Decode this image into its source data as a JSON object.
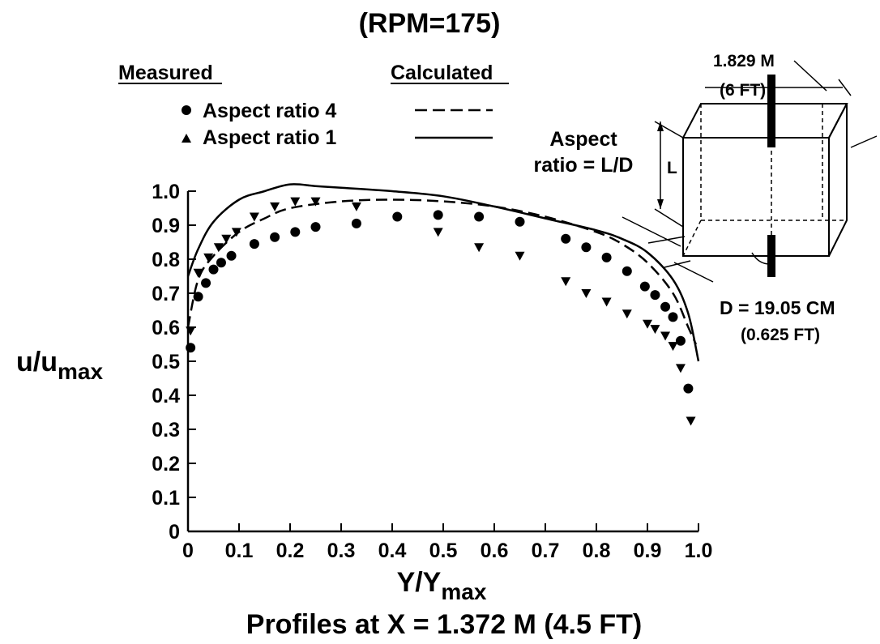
{
  "chart_data": {
    "type": "scatter",
    "title": "(RPM=175)",
    "subtitle": "Profiles at X = 1.372 M (4.5 FT)",
    "xlabel": {
      "main": "Y/Y",
      "sub": "max"
    },
    "ylabel": {
      "main": "u/u",
      "sub": "max"
    },
    "xlim": [
      0,
      1.0
    ],
    "ylim": [
      0,
      1.0
    ],
    "x_ticks": [
      "0",
      "0.1",
      "0.2",
      "0.3",
      "0.4",
      "0.5",
      "0.6",
      "0.7",
      "0.8",
      "0.9",
      "1.0"
    ],
    "y_ticks": [
      "0",
      "0.1",
      "0.2",
      "0.3",
      "0.4",
      "0.5",
      "0.6",
      "0.7",
      "0.8",
      "0.9",
      "1.0"
    ],
    "grid": false,
    "legend": {
      "position": "top-left",
      "measured_header": "Measured",
      "calculated_header": "Calculated",
      "entries": [
        {
          "label": "Aspect ratio 4",
          "marker": "circle",
          "line": "dashed"
        },
        {
          "label": "Aspect ratio 1",
          "marker": "triangle-down",
          "line": "solid"
        }
      ]
    },
    "annotations": {
      "aspect_line1": "Aspect",
      "aspect_line2": "ratio = L/D",
      "length_m": "1.829 M",
      "length_ft": "(6 FT)",
      "height_symbol": "L",
      "depth_m": "D  =  19.05 CM",
      "depth_ft": "(0.625 FT)"
    },
    "series": [
      {
        "name": "Aspect ratio 4",
        "kind": "measured",
        "marker": "circle",
        "points": [
          [
            0.005,
            0.54
          ],
          [
            0.02,
            0.69
          ],
          [
            0.035,
            0.73
          ],
          [
            0.05,
            0.77
          ],
          [
            0.065,
            0.79
          ],
          [
            0.085,
            0.81
          ],
          [
            0.13,
            0.845
          ],
          [
            0.17,
            0.865
          ],
          [
            0.21,
            0.88
          ],
          [
            0.25,
            0.895
          ],
          [
            0.33,
            0.905
          ],
          [
            0.41,
            0.925
          ],
          [
            0.49,
            0.93
          ],
          [
            0.57,
            0.925
          ],
          [
            0.65,
            0.91
          ],
          [
            0.74,
            0.86
          ],
          [
            0.78,
            0.835
          ],
          [
            0.82,
            0.805
          ],
          [
            0.86,
            0.765
          ],
          [
            0.895,
            0.72
          ],
          [
            0.915,
            0.695
          ],
          [
            0.935,
            0.66
          ],
          [
            0.95,
            0.63
          ],
          [
            0.965,
            0.56
          ],
          [
            0.98,
            0.42
          ]
        ]
      },
      {
        "name": "Aspect ratio 1",
        "kind": "measured",
        "marker": "triangle-down",
        "points": [
          [
            0.005,
            0.59
          ],
          [
            0.02,
            0.76
          ],
          [
            0.04,
            0.805
          ],
          [
            0.06,
            0.835
          ],
          [
            0.075,
            0.86
          ],
          [
            0.095,
            0.88
          ],
          [
            0.13,
            0.925
          ],
          [
            0.17,
            0.955
          ],
          [
            0.21,
            0.97
          ],
          [
            0.25,
            0.97
          ],
          [
            0.33,
            0.955
          ],
          [
            0.49,
            0.88
          ],
          [
            0.57,
            0.835
          ],
          [
            0.65,
            0.81
          ],
          [
            0.74,
            0.735
          ],
          [
            0.78,
            0.7
          ],
          [
            0.82,
            0.675
          ],
          [
            0.86,
            0.64
          ],
          [
            0.9,
            0.61
          ],
          [
            0.915,
            0.595
          ],
          [
            0.935,
            0.575
          ],
          [
            0.95,
            0.545
          ],
          [
            0.965,
            0.48
          ],
          [
            0.985,
            0.325
          ]
        ]
      },
      {
        "name": "Aspect ratio 4",
        "kind": "calculated",
        "line": "dashed",
        "points": [
          [
            0.0,
            0.6
          ],
          [
            0.02,
            0.74
          ],
          [
            0.05,
            0.81
          ],
          [
            0.1,
            0.88
          ],
          [
            0.15,
            0.92
          ],
          [
            0.2,
            0.95
          ],
          [
            0.3,
            0.97
          ],
          [
            0.4,
            0.975
          ],
          [
            0.5,
            0.97
          ],
          [
            0.6,
            0.955
          ],
          [
            0.7,
            0.925
          ],
          [
            0.8,
            0.88
          ],
          [
            0.85,
            0.845
          ],
          [
            0.9,
            0.79
          ],
          [
            0.95,
            0.7
          ],
          [
            0.98,
            0.6
          ],
          [
            0.995,
            0.55
          ]
        ]
      },
      {
        "name": "Aspect ratio 1",
        "kind": "calculated",
        "line": "solid",
        "points": [
          [
            0.0,
            0.75
          ],
          [
            0.02,
            0.83
          ],
          [
            0.05,
            0.91
          ],
          [
            0.1,
            0.975
          ],
          [
            0.15,
            1.0
          ],
          [
            0.2,
            1.02
          ],
          [
            0.25,
            1.015
          ],
          [
            0.3,
            1.01
          ],
          [
            0.4,
            1.0
          ],
          [
            0.5,
            0.985
          ],
          [
            0.6,
            0.955
          ],
          [
            0.7,
            0.92
          ],
          [
            0.8,
            0.885
          ],
          [
            0.85,
            0.86
          ],
          [
            0.9,
            0.82
          ],
          [
            0.95,
            0.74
          ],
          [
            0.98,
            0.64
          ],
          [
            1.0,
            0.5
          ]
        ]
      }
    ]
  }
}
